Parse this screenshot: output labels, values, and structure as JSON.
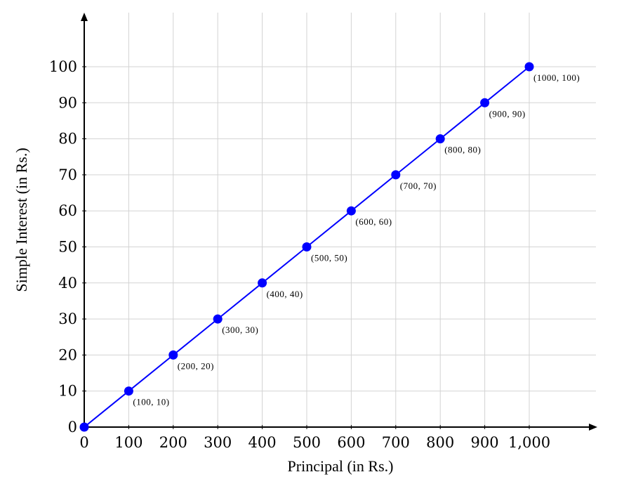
{
  "chart_data": {
    "type": "line",
    "title": "",
    "xlabel": "Principal (in Rs.)",
    "ylabel": "Simple Interest (in Rs.)",
    "x": [
      0,
      100,
      200,
      300,
      400,
      500,
      600,
      700,
      800,
      900,
      1000
    ],
    "series": [
      {
        "name": "Simple Interest",
        "values": [
          0,
          10,
          20,
          30,
          40,
          50,
          60,
          70,
          80,
          90,
          100
        ],
        "color": "#0000ff",
        "marker": "circle"
      }
    ],
    "point_labels": [
      "",
      "(100, 10)",
      "(200, 20)",
      "(300, 30)",
      "(400, 40)",
      "(500, 50)",
      "(600, 60)",
      "(700, 70)",
      "(800, 80)",
      "(900, 90)",
      "(1000, 100)"
    ],
    "x_ticks": [
      0,
      100,
      200,
      300,
      400,
      500,
      600,
      700,
      800,
      900,
      1000
    ],
    "x_tick_labels": [
      "0",
      "100",
      "200",
      "300",
      "400",
      "500",
      "600",
      "700",
      "800",
      "900",
      "1,000"
    ],
    "y_ticks": [
      0,
      10,
      20,
      30,
      40,
      50,
      60,
      70,
      80,
      90,
      100
    ],
    "y_tick_labels": [
      "0",
      "10",
      "20",
      "30",
      "40",
      "50",
      "60",
      "70",
      "80",
      "90",
      "100"
    ],
    "xlim": [
      0,
      1150
    ],
    "ylim": [
      0,
      115
    ],
    "grid": true,
    "legend": "none",
    "colors": {
      "line": "#0000ff",
      "grid": "#d3d3d3",
      "axis": "#000000"
    }
  }
}
